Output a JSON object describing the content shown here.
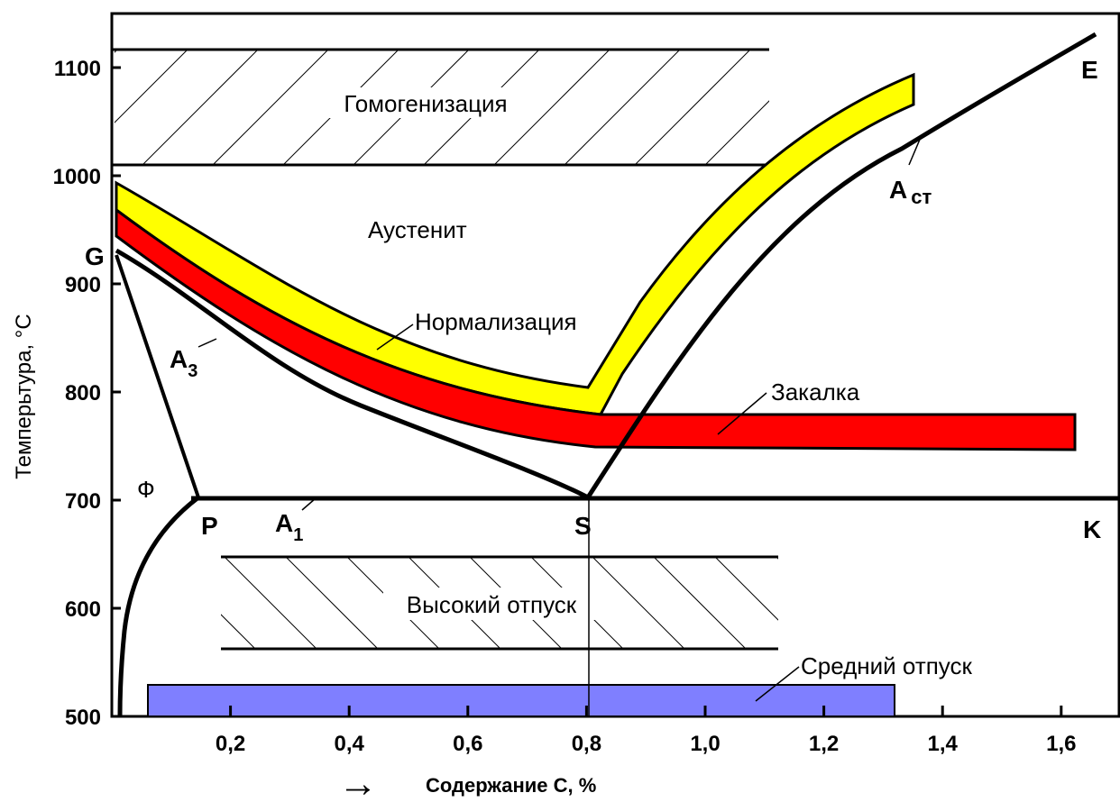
{
  "chart_data": {
    "type": "diagram",
    "ylabel": "Темперьтура, °С",
    "xlabel": "Содержание С, %",
    "xlabel_arrow": "→",
    "x_ticks": [
      "0,2",
      "0,4",
      "0,6",
      "0,8",
      "1,0",
      "1,2",
      "1,4",
      "1,6"
    ],
    "x_tick_values": [
      0.2,
      0.4,
      0.6,
      0.8,
      1.0,
      1.2,
      1.4,
      1.6
    ],
    "y_ticks": [
      "500",
      "600",
      "700",
      "800",
      "900",
      "1000",
      "1100"
    ],
    "y_tick_values": [
      500,
      600,
      700,
      800,
      900,
      1000,
      1100
    ],
    "xlim": [
      0,
      1.7
    ],
    "ylim": [
      500,
      1150
    ],
    "lines": {
      "GS_A3": [
        [
          0.0,
          930
        ],
        [
          0.2,
          840
        ],
        [
          0.4,
          785
        ],
        [
          0.6,
          740
        ],
        [
          0.8,
          700
        ]
      ],
      "SE_Acm": [
        [
          0.8,
          700
        ],
        [
          1.0,
          850
        ],
        [
          1.2,
          960
        ],
        [
          1.4,
          1060
        ],
        [
          1.64,
          1115
        ]
      ],
      "GP": [
        [
          0.0,
          925
        ],
        [
          0.15,
          700
        ]
      ],
      "PQ": [
        [
          0.15,
          700
        ],
        [
          0.1,
          670
        ],
        [
          0.05,
          600
        ],
        [
          0.02,
          500
        ]
      ],
      "PSK_A1": [
        [
          0.15,
          700
        ],
        [
          1.7,
          700
        ]
      ],
      "S_vertical": [
        [
          0.8,
          700
        ],
        [
          0.8,
          500
        ]
      ]
    },
    "regions": [
      {
        "name": "Гомогенизация",
        "type": "hatched",
        "x": [
          0.0,
          1.11
        ],
        "y": [
          1000,
          1100
        ]
      },
      {
        "name": "Нормализация",
        "color": "#ffff00"
      },
      {
        "name": "Закалка",
        "color": "#ff0000",
        "hypereutectoid_y": [
          748,
          777
        ],
        "x_end": 1.61
      },
      {
        "name": "Высокий отпуск",
        "type": "hatched",
        "x": [
          0.18,
          1.12
        ],
        "y": [
          562,
          646
        ]
      },
      {
        "name": "Средний отпуск",
        "color": "#7f7fff",
        "x": [
          0.06,
          1.32
        ],
        "y": [
          500,
          528
        ]
      }
    ],
    "labels": {
      "austenite": "Аустенит",
      "ferrite": "Ф",
      "A3": "A",
      "A3_sub": "3",
      "A1": "A",
      "A1_sub": "1",
      "Acm": "A",
      "Acm_sub": "ст"
    },
    "points": {
      "G": "G",
      "P": "P",
      "S": "S",
      "K": "K",
      "E": "E"
    },
    "colors": {
      "normalization": "#ffff00",
      "hardening": "#ff0000",
      "tempering_medium": "#7f7fff",
      "line": "#000000"
    },
    "grid": false,
    "legend": "none"
  }
}
